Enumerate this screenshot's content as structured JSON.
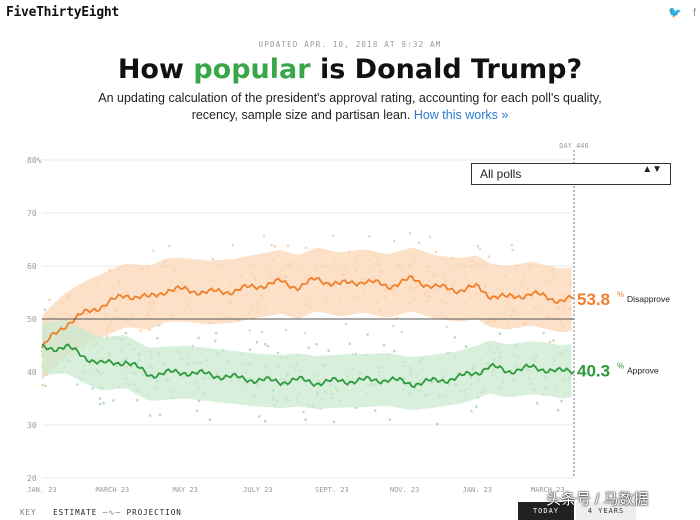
{
  "site": {
    "logo": "FiveThirtyEight",
    "twitter_glyph": "🐦",
    "facebook_glyph": "f"
  },
  "header": {
    "updated": "UPDATED APR. 10, 2018 AT 9:32 AM",
    "title_pre": "How ",
    "title_hl": "popular",
    "title_post": " is Donald Trump?",
    "subtitle": "An updating calculation of the president's approval rating, accounting for each poll's quality, recency, sample size and partisan lean.",
    "link": "How this works »"
  },
  "filter": {
    "selected": "All polls",
    "arrows": "▲▼"
  },
  "colors": {
    "disapprove": "#f07f2a",
    "approve": "#2e9a3e",
    "disapprove_band": "#fbd6b4",
    "approve_band": "#c9e9cf",
    "grid": "#e8e8e8"
  },
  "chart_data": {
    "type": "line",
    "title": "How popular is Donald Trump?",
    "x_tick_labels": [
      "JAN. 23",
      "MARCH 23",
      "MAY 23",
      "JULY 23",
      "SEPT. 23",
      "NOV. 23",
      "JAN. 23",
      "MARCH 23"
    ],
    "x_tick_days": [
      0,
      59,
      120,
      181,
      243,
      304,
      365,
      424
    ],
    "y_ticks": [
      20,
      30,
      40,
      50,
      60,
      70,
      80
    ],
    "y_tick_labels": [
      "20",
      "30",
      "40",
      "50",
      "60",
      "70",
      "80%"
    ],
    "ylim": [
      20,
      80
    ],
    "xlim_days": [
      0,
      446
    ],
    "reference_line": 50,
    "day_marker": {
      "day": 446,
      "label": "DAY 446"
    },
    "series": [
      {
        "name": "Disapprove",
        "final_value": "53.8",
        "days": [
          0,
          8,
          20,
          35,
          50,
          70,
          90,
          105,
          120,
          140,
          160,
          180,
          200,
          215,
          230,
          250,
          270,
          290,
          310,
          330,
          350,
          365,
          375,
          390,
          410,
          425,
          435,
          446
        ],
        "values": [
          44.5,
          46.5,
          49.0,
          51.0,
          52.5,
          54.5,
          54.0,
          55.5,
          55.5,
          55.0,
          55.3,
          56.2,
          57.0,
          56.0,
          57.5,
          56.5,
          57.2,
          56.2,
          57.5,
          56.0,
          55.5,
          56.0,
          54.5,
          54.0,
          54.8,
          54.0,
          53.5,
          53.8
        ],
        "band": 6
      },
      {
        "name": "Approve",
        "final_value": "40.3",
        "days": [
          0,
          8,
          20,
          35,
          50,
          70,
          90,
          105,
          120,
          140,
          160,
          180,
          200,
          215,
          230,
          250,
          270,
          290,
          310,
          330,
          350,
          365,
          375,
          390,
          410,
          425,
          435,
          446
        ],
        "values": [
          44.5,
          44.5,
          44.8,
          43.0,
          41.5,
          42.0,
          39.5,
          39.8,
          40.0,
          39.5,
          39.0,
          38.5,
          38.2,
          38.5,
          38.0,
          38.3,
          38.4,
          38.6,
          37.8,
          38.3,
          39.0,
          40.0,
          41.0,
          40.2,
          40.8,
          40.5,
          40.0,
          40.3
        ],
        "band": 5
      }
    ]
  },
  "key": {
    "label": "KEY",
    "estimate": "ESTIMATE",
    "projection": "PROJECTION"
  },
  "buttons": {
    "today": "TODAY",
    "years": "4 YEARS"
  },
  "watermark": "头条号 / 马数据"
}
